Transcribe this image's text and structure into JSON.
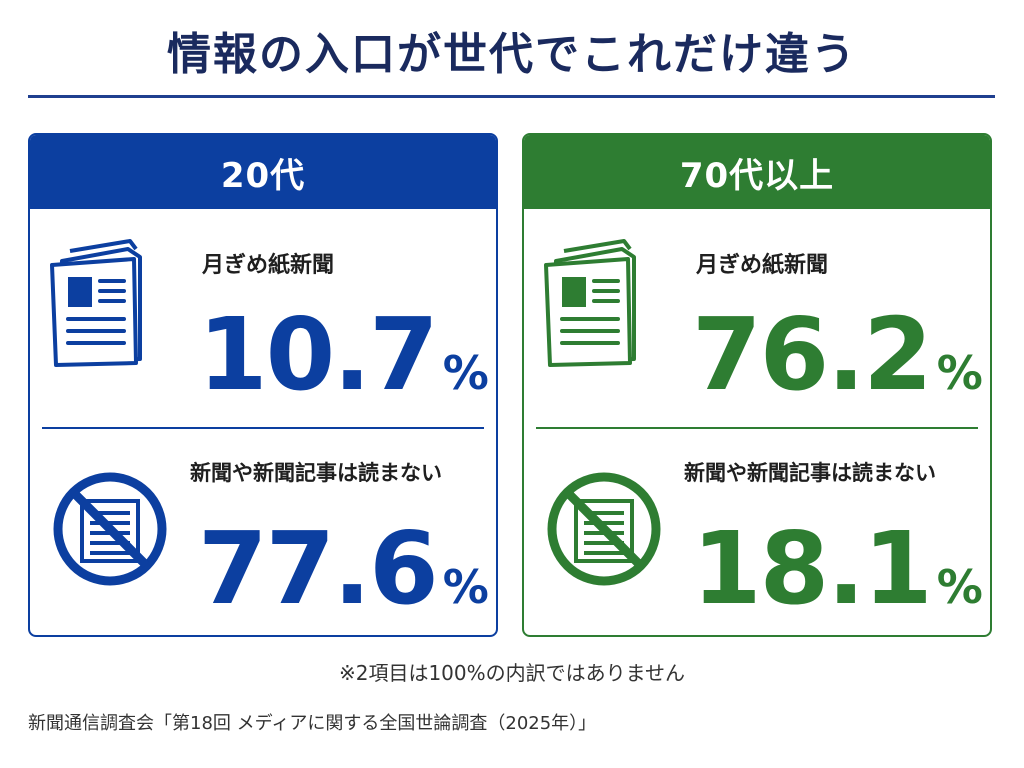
{
  "title": "情報の入口が世代でこれだけ違う",
  "colors": {
    "blue": "#0c3fa0",
    "green": "#2e7d32",
    "title": "#1a2a5e"
  },
  "cards": [
    {
      "header": "20代",
      "stats": [
        {
          "icon": "newspaper-icon",
          "label": "月ぎめ紙新聞",
          "value": "10.7",
          "unit": "%"
        },
        {
          "icon": "no-newspaper-icon",
          "label": "新聞や新聞記事は読まない",
          "value": "77.6",
          "unit": "%"
        }
      ]
    },
    {
      "header": "70代以上",
      "stats": [
        {
          "icon": "newspaper-icon",
          "label": "月ぎめ紙新聞",
          "value": "76.2",
          "unit": "%"
        },
        {
          "icon": "no-newspaper-icon",
          "label": "新聞や新聞記事は読まない",
          "value": "18.1",
          "unit": "%"
        }
      ]
    }
  ],
  "note": "※2項目は100%の内訳ではありません",
  "source": "新聞通信調査会「第18回 メディアに関する全国世論調査（2025年）」"
}
